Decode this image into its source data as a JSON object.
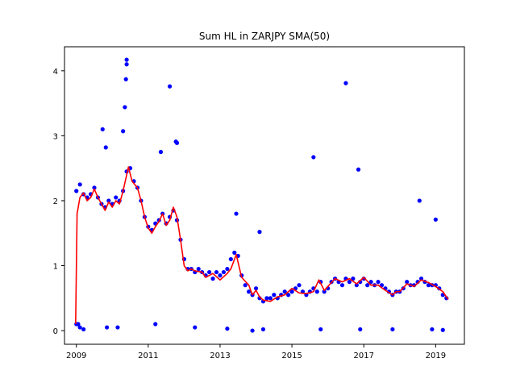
{
  "chart_data": {
    "type": "scatter",
    "title": "Sum HL in ZARJPY SMA(50)",
    "xlabel": "",
    "ylabel": "",
    "xlim": [
      2008.67,
      2019.8
    ],
    "ylim": [
      -0.21,
      4.37
    ],
    "x_ticks": [
      2009,
      2011,
      2013,
      2015,
      2017,
      2019
    ],
    "x_tick_labels": [
      "2009",
      "2011",
      "2013",
      "2015",
      "2017",
      "2019"
    ],
    "y_ticks": [
      0,
      1,
      2,
      3,
      4
    ],
    "y_tick_labels": [
      "0",
      "1",
      "2",
      "3",
      "4"
    ],
    "grid": false,
    "legend": "none",
    "series": [
      {
        "kind": "scatter",
        "color": "#0000ff",
        "x": [
          2009.0,
          2009.1,
          2009.2,
          2009.3,
          2009.4,
          2009.5,
          2009.6,
          2009.7,
          2009.8,
          2009.9,
          2010.0,
          2010.1,
          2010.2,
          2010.3,
          2010.4,
          2010.5,
          2010.6,
          2010.7,
          2010.8,
          2010.9,
          2011.0,
          2011.1,
          2011.2,
          2011.3,
          2011.4,
          2011.5,
          2011.6,
          2011.7,
          2011.8,
          2011.9,
          2012.0,
          2012.1,
          2012.2,
          2012.3,
          2012.4,
          2012.5,
          2012.6,
          2012.7,
          2012.8,
          2012.9,
          2013.0,
          2013.1,
          2013.2,
          2013.3,
          2013.4,
          2013.5,
          2013.6,
          2013.7,
          2013.8,
          2013.9,
          2014.0,
          2014.1,
          2014.2,
          2014.3,
          2014.4,
          2014.5,
          2014.6,
          2014.7,
          2014.8,
          2014.9,
          2015.0,
          2015.1,
          2015.2,
          2015.3,
          2015.4,
          2015.5,
          2015.6,
          2015.7,
          2015.8,
          2015.9,
          2016.0,
          2016.1,
          2016.2,
          2016.3,
          2016.4,
          2016.5,
          2016.6,
          2016.7,
          2016.8,
          2016.9,
          2017.0,
          2017.1,
          2017.2,
          2017.3,
          2017.4,
          2017.5,
          2017.6,
          2017.7,
          2017.8,
          2017.9,
          2018.0,
          2018.1,
          2018.2,
          2018.3,
          2018.4,
          2018.5,
          2018.6,
          2018.7,
          2018.8,
          2018.9,
          2019.0,
          2019.1,
          2019.2,
          2019.3,
          2010.4,
          2010.4,
          2010.38,
          2010.35,
          2010.3,
          2011.6,
          2009.73,
          2009.82,
          2016.5,
          2015.6,
          2016.85,
          2018.55,
          2019.0,
          2011.77,
          2011.8,
          2011.35,
          2013.45,
          2014.1,
          2009.05,
          2009.1,
          2009.2,
          2010.15,
          2009.85,
          2011.2,
          2012.3,
          2013.2,
          2014.2,
          2015.8,
          2016.9,
          2017.8,
          2018.9,
          2019.2,
          2009.0,
          2013.9
        ],
        "y": [
          2.15,
          2.25,
          2.1,
          2.05,
          2.1,
          2.2,
          2.05,
          1.95,
          1.9,
          2.0,
          1.95,
          2.05,
          2.0,
          2.15,
          2.45,
          2.5,
          2.3,
          2.2,
          2.0,
          1.75,
          1.6,
          1.55,
          1.65,
          1.7,
          1.8,
          1.65,
          1.75,
          1.85,
          1.7,
          1.4,
          1.1,
          0.95,
          0.95,
          0.9,
          0.95,
          0.9,
          0.85,
          0.9,
          0.8,
          0.9,
          0.85,
          0.9,
          0.95,
          1.1,
          1.2,
          1.15,
          0.85,
          0.7,
          0.6,
          0.55,
          0.65,
          0.5,
          0.45,
          0.5,
          0.5,
          0.55,
          0.5,
          0.55,
          0.6,
          0.55,
          0.6,
          0.65,
          0.7,
          0.6,
          0.55,
          0.6,
          0.65,
          0.6,
          0.75,
          0.6,
          0.65,
          0.75,
          0.8,
          0.75,
          0.7,
          0.8,
          0.75,
          0.8,
          0.7,
          0.75,
          0.8,
          0.7,
          0.75,
          0.7,
          0.75,
          0.7,
          0.65,
          0.6,
          0.55,
          0.6,
          0.6,
          0.65,
          0.75,
          0.7,
          0.7,
          0.75,
          0.8,
          0.75,
          0.7,
          0.7,
          0.7,
          0.65,
          0.55,
          0.5,
          4.17,
          4.1,
          3.87,
          3.44,
          3.07,
          3.76,
          3.1,
          2.82,
          3.81,
          2.67,
          2.48,
          2.0,
          1.71,
          2.91,
          2.89,
          2.75,
          1.8,
          1.52,
          0.1,
          0.05,
          0.02,
          0.05,
          0.05,
          0.1,
          0.05,
          0.03,
          0.02,
          0.02,
          0.02,
          0.02,
          0.02,
          0.01,
          0.1,
          0.0
        ]
      },
      {
        "kind": "line",
        "color": "#ff0000",
        "x": [
          2008.98,
          2009.02,
          2009.1,
          2009.2,
          2009.3,
          2009.4,
          2009.5,
          2009.6,
          2009.7,
          2009.8,
          2009.9,
          2010.0,
          2010.1,
          2010.2,
          2010.3,
          2010.45,
          2010.55,
          2010.7,
          2010.8,
          2010.9,
          2011.0,
          2011.1,
          2011.2,
          2011.3,
          2011.4,
          2011.5,
          2011.6,
          2011.7,
          2011.8,
          2011.9,
          2012.0,
          2012.1,
          2012.2,
          2012.3,
          2012.5,
          2012.6,
          2012.8,
          2013.0,
          2013.2,
          2013.3,
          2013.45,
          2013.6,
          2013.8,
          2013.9,
          2014.0,
          2014.1,
          2014.2,
          2014.4,
          2014.6,
          2014.8,
          2015.0,
          2015.2,
          2015.4,
          2015.6,
          2015.75,
          2015.9,
          2016.0,
          2016.2,
          2016.4,
          2016.6,
          2016.8,
          2017.0,
          2017.2,
          2017.4,
          2017.6,
          2017.8,
          2017.9,
          2018.0,
          2018.2,
          2018.4,
          2018.6,
          2018.8,
          2019.0,
          2019.2,
          2019.35
        ],
        "y": [
          0.1,
          1.8,
          2.05,
          2.12,
          2.0,
          2.05,
          2.18,
          2.05,
          1.95,
          1.85,
          1.98,
          1.9,
          2.0,
          1.95,
          2.15,
          2.52,
          2.3,
          2.2,
          2.0,
          1.75,
          1.58,
          1.5,
          1.6,
          1.68,
          1.8,
          1.62,
          1.7,
          1.9,
          1.75,
          1.4,
          1.0,
          0.92,
          0.95,
          0.92,
          0.9,
          0.82,
          0.88,
          0.78,
          0.88,
          0.95,
          1.17,
          0.82,
          0.7,
          0.55,
          0.62,
          0.52,
          0.47,
          0.45,
          0.52,
          0.55,
          0.65,
          0.58,
          0.57,
          0.6,
          0.78,
          0.62,
          0.68,
          0.8,
          0.75,
          0.8,
          0.72,
          0.82,
          0.7,
          0.7,
          0.62,
          0.55,
          0.6,
          0.6,
          0.72,
          0.68,
          0.78,
          0.74,
          0.68,
          0.6,
          0.48
        ]
      }
    ]
  }
}
